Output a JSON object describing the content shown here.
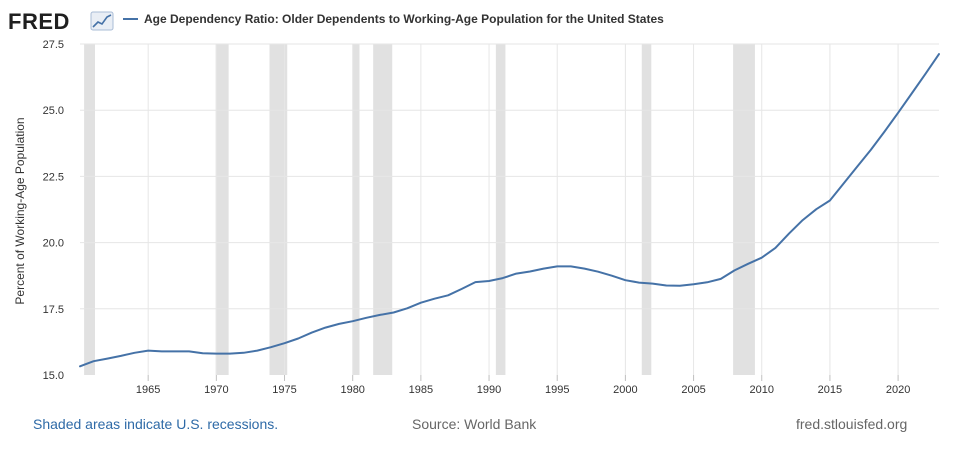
{
  "header": {
    "logo_text": "FRED",
    "legend_label": "Age Dependency Ratio: Older Dependents to Working-Age Population for the United States"
  },
  "footer": {
    "recession_note": "Shaded areas indicate U.S. recessions.",
    "source": "Source: World Bank",
    "site": "fred.stlouisfed.org"
  },
  "colors": {
    "series": "#4572a7",
    "recession": "#e1e1e1",
    "grid": "#e6e6e6",
    "link": "#2e6aa7"
  },
  "chart_data": {
    "type": "line",
    "title": "Age Dependency Ratio: Older Dependents to Working-Age Population for the United States",
    "xlabel": "",
    "ylabel": "Percent of Working-Age Population",
    "xlim": [
      1960,
      2023
    ],
    "ylim": [
      15.0,
      27.5
    ],
    "yticks": [
      15.0,
      17.5,
      20.0,
      22.5,
      25.0,
      27.5
    ],
    "xticks": [
      1965,
      1970,
      1975,
      1980,
      1985,
      1990,
      1995,
      2000,
      2005,
      2010,
      2015,
      2020
    ],
    "grid": true,
    "legend_position": "top",
    "recessions": [
      [
        1960.3,
        1961.1
      ],
      [
        1969.95,
        1970.9
      ],
      [
        1973.9,
        1975.2
      ],
      [
        1980.0,
        1980.5
      ],
      [
        1981.5,
        1982.9
      ],
      [
        1990.5,
        1991.2
      ],
      [
        2001.2,
        2001.9
      ],
      [
        2007.9,
        2009.5
      ]
    ],
    "series": [
      {
        "name": "Age Dependency Ratio: Older Dependents to Working-Age Population for the United States",
        "x": [
          1960,
          1961,
          1962,
          1963,
          1964,
          1965,
          1966,
          1967,
          1968,
          1969,
          1970,
          1971,
          1972,
          1973,
          1974,
          1975,
          1976,
          1977,
          1978,
          1979,
          1980,
          1981,
          1982,
          1983,
          1984,
          1985,
          1986,
          1987,
          1988,
          1989,
          1990,
          1991,
          1992,
          1993,
          1994,
          1995,
          1996,
          1997,
          1998,
          1999,
          2000,
          2001,
          2002,
          2003,
          2004,
          2005,
          2006,
          2007,
          2008,
          2009,
          2010,
          2011,
          2012,
          2013,
          2014,
          2015,
          2016,
          2017,
          2018,
          2019,
          2020,
          2021,
          2022,
          2023
        ],
        "values": [
          15.33,
          15.52,
          15.62,
          15.72,
          15.84,
          15.92,
          15.89,
          15.89,
          15.89,
          15.82,
          15.81,
          15.81,
          15.84,
          15.92,
          16.05,
          16.2,
          16.38,
          16.6,
          16.79,
          16.93,
          17.03,
          17.16,
          17.27,
          17.36,
          17.52,
          17.73,
          17.88,
          18.01,
          18.25,
          18.51,
          18.55,
          18.66,
          18.83,
          18.91,
          19.02,
          19.1,
          19.1,
          19.02,
          18.9,
          18.75,
          18.58,
          18.49,
          18.45,
          18.38,
          18.37,
          18.43,
          18.5,
          18.63,
          18.95,
          19.2,
          19.43,
          19.8,
          20.34,
          20.85,
          21.26,
          21.59,
          22.23,
          22.87,
          23.5,
          24.19,
          24.9,
          25.63,
          26.37,
          27.12
        ]
      }
    ]
  }
}
